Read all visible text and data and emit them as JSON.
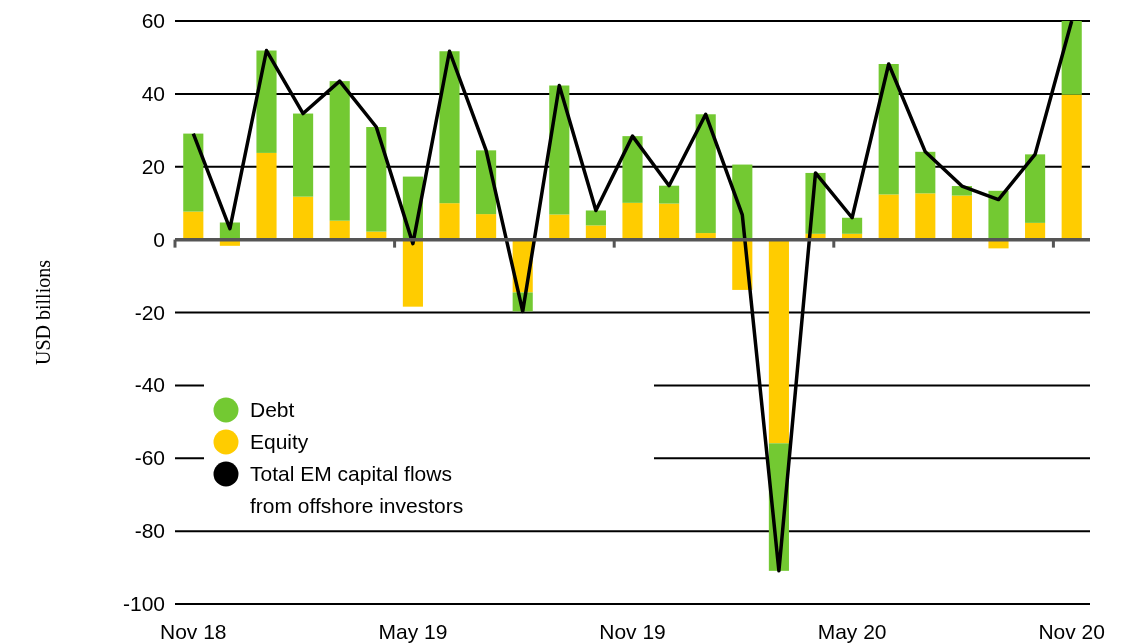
{
  "chart_data": {
    "type": "bar",
    "stacked": true,
    "ylabel": "USD billions",
    "categories": [
      "Nov 18",
      null,
      null,
      null,
      null,
      null,
      "May 19",
      null,
      null,
      null,
      null,
      null,
      "Nov 19",
      null,
      null,
      null,
      null,
      null,
      "May 20",
      null,
      null,
      null,
      null,
      null,
      "Nov 20"
    ],
    "series": [
      {
        "name": "Equity",
        "color": "#ffcc00",
        "values": [
          7.7,
          -1.7,
          23.8,
          11.8,
          5.2,
          2.2,
          -18.4,
          10.0,
          7.0,
          -14.5,
          6.9,
          3.9,
          10.1,
          9.9,
          1.8,
          -13.8,
          -55.9,
          1.6,
          1.6,
          12.4,
          12.7,
          12.1,
          -2.4,
          4.6,
          39.8
        ]
      },
      {
        "name": "Debt",
        "color": "#73c932",
        "values": [
          21.4,
          4.7,
          28.1,
          22.8,
          38.3,
          28.7,
          17.3,
          41.7,
          17.5,
          -5.2,
          35.4,
          4.1,
          18.3,
          4.9,
          32.6,
          20.6,
          -35.0,
          16.7,
          4.4,
          35.8,
          11.4,
          2.6,
          13.4,
          18.8,
          20.2
        ]
      },
      {
        "name": "Total EM capital flows from offshore investors",
        "type": "line",
        "color": "#000000",
        "values": [
          29.1,
          3.0,
          51.9,
          34.6,
          43.5,
          30.9,
          -1.1,
          51.7,
          24.5,
          -19.7,
          42.3,
          8.0,
          28.4,
          14.8,
          34.4,
          6.8,
          -90.9,
          18.3,
          6.0,
          48.2,
          24.1,
          14.7,
          11.0,
          23.4,
          60.0
        ]
      }
    ],
    "ylim": [
      -100,
      60
    ],
    "yticks": [
      -100,
      -80,
      -60,
      -40,
      -20,
      0,
      20,
      40,
      60
    ],
    "grid": "y",
    "legend": "bottom left",
    "marker": "none"
  }
}
